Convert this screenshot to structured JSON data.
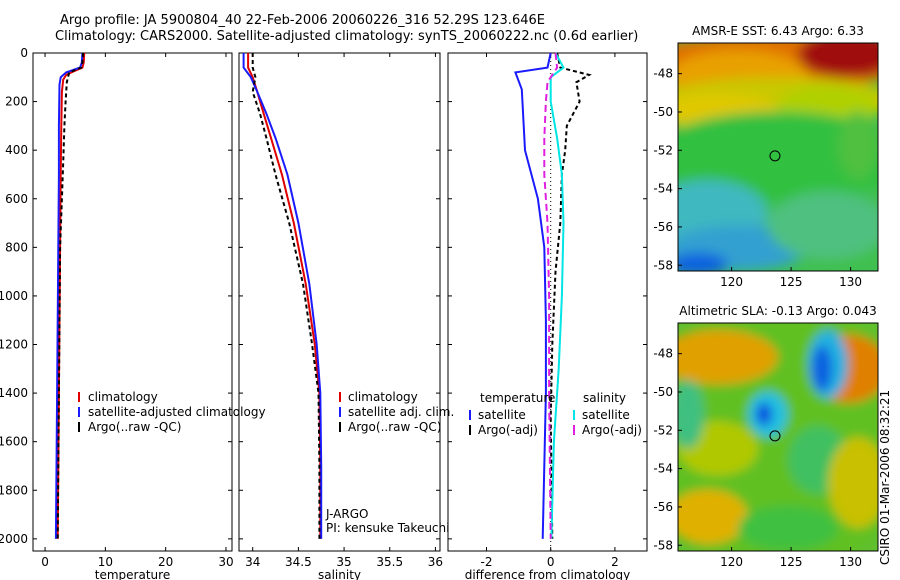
{
  "header": {
    "title1": "Argo profile: JA 5900804_40 22-Feb-2006 20060226_316 52.29S 123.646E",
    "title2": "Climatology: CARS2000. Satellite-adjusted climatology: synTS_20060222.nc (0.6d earlier)"
  },
  "credit": "CSIRO 01-Mar-2006 08:32:21",
  "colors": {
    "red": "#e00000",
    "blue": "#1a1aff",
    "black": "#000000",
    "cyan": "#00e5e5",
    "magenta": "#e020e0"
  },
  "chart_data": [
    {
      "type": "line",
      "panel": "temperature",
      "xlabel": "temperature",
      "ylabel": "",
      "xlim": [
        -2,
        31
      ],
      "ylim": [
        2050,
        0
      ],
      "xticks": [
        0,
        10,
        20,
        30
      ],
      "yticks": [
        0,
        200,
        400,
        600,
        800,
        1000,
        1200,
        1400,
        1600,
        1800,
        2000
      ],
      "legend": [
        "climatology",
        "satellite-adjusted climatology",
        "Argo(..raw -QC)"
      ],
      "series": [
        {
          "name": "climatology",
          "color": "red",
          "points": [
            [
              6.5,
              0
            ],
            [
              6.4,
              40
            ],
            [
              6.2,
              60
            ],
            [
              4.8,
              75
            ],
            [
              3.5,
              90
            ],
            [
              3.0,
              110
            ],
            [
              2.8,
              160
            ],
            [
              2.7,
              300
            ],
            [
              2.6,
              500
            ],
            [
              2.5,
              800
            ],
            [
              2.4,
              1100
            ],
            [
              2.3,
              1400
            ],
            [
              2.2,
              1700
            ],
            [
              2.1,
              2000
            ]
          ]
        },
        {
          "name": "satellite-adjusted climatology",
          "color": "blue",
          "points": [
            [
              6.2,
              0
            ],
            [
              6.1,
              40
            ],
            [
              5.8,
              60
            ],
            [
              3.5,
              80
            ],
            [
              2.6,
              100
            ],
            [
              2.4,
              130
            ],
            [
              2.3,
              300
            ],
            [
              2.3,
              500
            ],
            [
              2.2,
              800
            ],
            [
              2.1,
              1100
            ],
            [
              2.0,
              1400
            ],
            [
              1.9,
              1700
            ],
            [
              1.8,
              2000
            ]
          ]
        },
        {
          "name": "Argo(..raw -QC)",
          "color": "black",
          "dash": "4,3",
          "points": [
            [
              6.3,
              0
            ],
            [
              6.2,
              40
            ],
            [
              6.0,
              60
            ],
            [
              4.0,
              80
            ],
            [
              3.6,
              120
            ],
            [
              3.4,
              200
            ],
            [
              3.2,
              300
            ],
            [
              3.0,
              450
            ],
            [
              2.8,
              600
            ],
            [
              2.5,
              800
            ],
            [
              2.4,
              1100
            ],
            [
              2.3,
              1400
            ],
            [
              2.2,
              1700
            ],
            [
              2.1,
              2000
            ]
          ]
        }
      ]
    },
    {
      "type": "line",
      "panel": "salinity",
      "xlabel": "salinity",
      "ylabel": "",
      "xlim": [
        33.85,
        36.05
      ],
      "ylim": [
        2050,
        0
      ],
      "xticks": [
        34,
        34.5,
        35,
        35.5,
        36
      ],
      "yticks": [],
      "legend": [
        "climatology",
        "satellite adj. clim.",
        "Argo(..raw -QC)"
      ],
      "annotation": [
        "J-ARGO",
        "PI: kensuke Takeuchi"
      ],
      "series": [
        {
          "name": "climatology",
          "color": "red",
          "points": [
            [
              33.95,
              0
            ],
            [
              33.95,
              60
            ],
            [
              34.0,
              100
            ],
            [
              34.05,
              160
            ],
            [
              34.12,
              250
            ],
            [
              34.2,
              350
            ],
            [
              34.32,
              500
            ],
            [
              34.45,
              700
            ],
            [
              34.58,
              950
            ],
            [
              34.68,
              1200
            ],
            [
              34.73,
              1400
            ],
            [
              34.74,
              1700
            ],
            [
              34.74,
              2000
            ]
          ]
        },
        {
          "name": "satellite adj. clim.",
          "color": "blue",
          "points": [
            [
              33.9,
              0
            ],
            [
              33.9,
              60
            ],
            [
              33.98,
              100
            ],
            [
              34.05,
              160
            ],
            [
              34.15,
              250
            ],
            [
              34.25,
              350
            ],
            [
              34.38,
              500
            ],
            [
              34.5,
              700
            ],
            [
              34.62,
              950
            ],
            [
              34.7,
              1200
            ],
            [
              34.74,
              1400
            ],
            [
              34.75,
              1700
            ],
            [
              34.75,
              2000
            ]
          ]
        },
        {
          "name": "Argo(..raw -QC)",
          "color": "black",
          "dash": "4,3",
          "points": [
            [
              34.0,
              0
            ],
            [
              34.0,
              60
            ],
            [
              34.03,
              100
            ],
            [
              34.0,
              160
            ],
            [
              34.08,
              250
            ],
            [
              34.15,
              350
            ],
            [
              34.25,
              500
            ],
            [
              34.4,
              700
            ],
            [
              34.55,
              950
            ],
            [
              34.65,
              1200
            ],
            [
              34.72,
              1400
            ],
            [
              34.73,
              1700
            ],
            [
              34.73,
              2000
            ]
          ]
        }
      ]
    },
    {
      "type": "line",
      "panel": "difference",
      "xlabel": "difference from climatology",
      "ylabel": "",
      "xlim": [
        -3.2,
        3.0
      ],
      "ylim": [
        2050,
        0
      ],
      "xticks": [
        -2,
        0,
        2
      ],
      "yticks": [],
      "legend_groups": [
        {
          "title": "temperature",
          "items": [
            "satellite",
            "Argo(-adj)"
          ]
        },
        {
          "title": "salinity",
          "items": [
            "satellite",
            "Argo(-adj)"
          ]
        }
      ],
      "series": [
        {
          "name": "temperature satellite",
          "color": "blue",
          "points": [
            [
              0,
              0
            ],
            [
              -0.1,
              60
            ],
            [
              -1.1,
              80
            ],
            [
              -0.9,
              150
            ],
            [
              -0.8,
              400
            ],
            [
              -0.4,
              600
            ],
            [
              -0.2,
              800
            ],
            [
              -0.15,
              1100
            ],
            [
              -0.15,
              1400
            ],
            [
              -0.2,
              1700
            ],
            [
              -0.25,
              2000
            ]
          ]
        },
        {
          "name": "temperature Argo(-adj)",
          "color": "black",
          "dash": "4,3",
          "points": [
            [
              0.2,
              0
            ],
            [
              0.3,
              60
            ],
            [
              1.2,
              90
            ],
            [
              0.8,
              120
            ],
            [
              0.9,
              200
            ],
            [
              0.5,
              300
            ],
            [
              0.45,
              400
            ],
            [
              0.35,
              500
            ],
            [
              0.3,
              700
            ],
            [
              0.15,
              900
            ],
            [
              0.05,
              1200
            ],
            [
              0.0,
              1500
            ],
            [
              0.05,
              2000
            ]
          ]
        },
        {
          "name": "salinity satellite",
          "color": "cyan",
          "points": [
            [
              0.15,
              0
            ],
            [
              0.4,
              60
            ],
            [
              0.0,
              100
            ],
            [
              0.0,
              200
            ],
            [
              0.2,
              350
            ],
            [
              0.35,
              500
            ],
            [
              0.4,
              700
            ],
            [
              0.35,
              1000
            ],
            [
              0.25,
              1300
            ],
            [
              0.1,
              1600
            ],
            [
              0.02,
              2000
            ]
          ]
        },
        {
          "name": "salinity Argo(-adj)",
          "color": "magenta",
          "dash": "7,4",
          "points": [
            [
              0.15,
              0
            ],
            [
              0.2,
              60
            ],
            [
              -0.1,
              120
            ],
            [
              -0.15,
              200
            ],
            [
              -0.2,
              350
            ],
            [
              -0.2,
              500
            ],
            [
              -0.1,
              700
            ],
            [
              -0.05,
              1000
            ],
            [
              -0.05,
              1400
            ],
            [
              0.0,
              2000
            ]
          ]
        }
      ]
    },
    {
      "type": "heatmap",
      "panel": "sst-map",
      "title": "AMSR-E SST: 6.43 Argo: 6.33",
      "xlim": [
        115.5,
        132.3
      ],
      "ylim": [
        -58.3,
        -46.4
      ],
      "xticks": [
        120,
        125,
        130
      ],
      "yticks": [
        -48,
        -50,
        -52,
        -54,
        -56,
        -58
      ],
      "marker": [
        123.646,
        -52.29
      ]
    },
    {
      "type": "heatmap",
      "panel": "sla-map",
      "title": "Altimetric SLA: -0.13 Argo: 0.043",
      "xlim": [
        115.5,
        132.3
      ],
      "ylim": [
        -58.3,
        -46.4
      ],
      "xticks": [
        120,
        125,
        130
      ],
      "yticks": [
        -48,
        -50,
        -52,
        -54,
        -56,
        -58
      ],
      "marker": [
        123.646,
        -52.29
      ]
    }
  ]
}
